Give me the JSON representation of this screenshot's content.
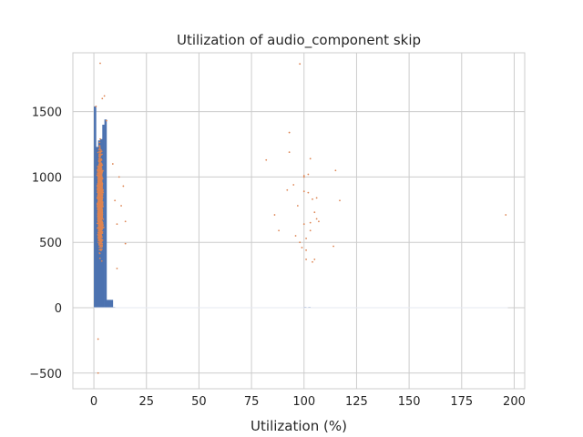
{
  "chart_data": {
    "type": "scatter",
    "title": "Utilization of audio_component skip",
    "xlabel": "Utilization (%)",
    "ylabel": "",
    "xlim": [
      -10,
      205
    ],
    "ylim": [
      -620,
      1950
    ],
    "x_ticks": [
      0,
      25,
      50,
      75,
      100,
      125,
      150,
      175,
      200
    ],
    "y_ticks": [
      -500,
      0,
      500,
      1000,
      1500
    ],
    "x_tick_labels": [
      "0",
      "25",
      "50",
      "75",
      "100",
      "125",
      "150",
      "175",
      "200"
    ],
    "y_tick_labels": [
      "−500",
      "0",
      "500",
      "1000",
      "1500"
    ],
    "grid": true,
    "legend": "none",
    "colors": {
      "histogram": "#4c72b0",
      "scatter": "#dd8452",
      "grid": "#cccccc",
      "spine": "#cccccc"
    },
    "histogram": {
      "bin_width": 1.0,
      "bins": [
        {
          "x": 0.0,
          "count": 1540
        },
        {
          "x": 1.0,
          "count": 1230
        },
        {
          "x": 2.0,
          "count": 1280
        },
        {
          "x": 3.0,
          "count": 1290
        },
        {
          "x": 4.0,
          "count": 1400
        },
        {
          "x": 5.0,
          "count": 1440
        },
        {
          "x": 6.0,
          "count": 60
        },
        {
          "x": 7.0,
          "count": 60
        },
        {
          "x": 8.0,
          "count": 60
        },
        {
          "x": 9.0,
          "count": 5
        },
        {
          "x": 100.0,
          "count": 5
        },
        {
          "x": 102.0,
          "count": 5
        }
      ]
    },
    "scatter_dense_cluster": {
      "x_range": [
        0,
        9
      ],
      "y_range": [
        -250,
        1880
      ],
      "point_count": 2200
    },
    "scatter_outliers": [
      {
        "x": 82,
        "y": 1130
      },
      {
        "x": 86,
        "y": 710
      },
      {
        "x": 88,
        "y": 590
      },
      {
        "x": 92,
        "y": 900
      },
      {
        "x": 93,
        "y": 1340
      },
      {
        "x": 93,
        "y": 1190
      },
      {
        "x": 95,
        "y": 940
      },
      {
        "x": 96,
        "y": 550
      },
      {
        "x": 97,
        "y": 780
      },
      {
        "x": 98,
        "y": 1865
      },
      {
        "x": 98,
        "y": 500
      },
      {
        "x": 99,
        "y": 460
      },
      {
        "x": 100,
        "y": 1000
      },
      {
        "x": 100,
        "y": 1010
      },
      {
        "x": 100,
        "y": 890
      },
      {
        "x": 100,
        "y": 640
      },
      {
        "x": 101,
        "y": 440
      },
      {
        "x": 101,
        "y": 530
      },
      {
        "x": 101,
        "y": 370
      },
      {
        "x": 102,
        "y": 1020
      },
      {
        "x": 102,
        "y": 880
      },
      {
        "x": 103,
        "y": 1140
      },
      {
        "x": 103,
        "y": 590
      },
      {
        "x": 103,
        "y": 650
      },
      {
        "x": 104,
        "y": 350
      },
      {
        "x": 104,
        "y": 830
      },
      {
        "x": 105,
        "y": 370
      },
      {
        "x": 105,
        "y": 730
      },
      {
        "x": 106,
        "y": 680
      },
      {
        "x": 106,
        "y": 840
      },
      {
        "x": 107,
        "y": 660
      },
      {
        "x": 114,
        "y": 470
      },
      {
        "x": 115,
        "y": 1050
      },
      {
        "x": 117,
        "y": 820
      },
      {
        "x": 196,
        "y": 710
      }
    ],
    "scatter_near_cluster": [
      {
        "x": 10,
        "y": 820
      },
      {
        "x": 11,
        "y": 640
      },
      {
        "x": 12,
        "y": 1000
      },
      {
        "x": 13,
        "y": 780
      },
      {
        "x": 14,
        "y": 930
      },
      {
        "x": 15,
        "y": 490
      },
      {
        "x": 15,
        "y": 660
      },
      {
        "x": 11,
        "y": 300
      },
      {
        "x": 9,
        "y": 1100
      }
    ]
  }
}
